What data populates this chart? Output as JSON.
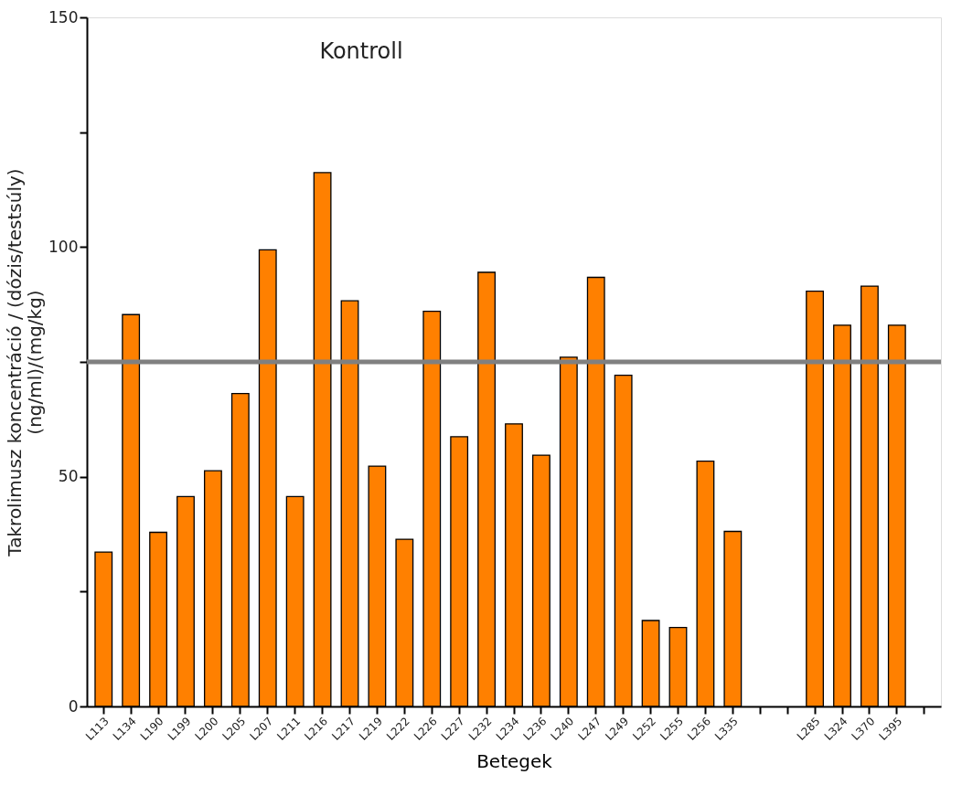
{
  "chart_data": {
    "type": "bar",
    "xlabel": "Betegek",
    "ylabel": "Takrolimusz koncentráció / (dózis/testsúly)\n(ng/ml)/(mg/kg)",
    "categories": [
      "L113",
      "L134",
      "L190",
      "L199",
      "L200",
      "L205",
      "L207",
      "L211",
      "L216",
      "L217",
      "L219",
      "L222",
      "L226",
      "L227",
      "L232",
      "L234",
      "L236",
      "L240",
      "L247",
      "L249",
      "L252",
      "L255",
      "L256",
      "L335",
      null,
      null,
      "L285",
      "L324",
      "L370",
      "L395",
      null
    ],
    "values": [
      33.6,
      85.3,
      37.9,
      45.7,
      51.3,
      68.1,
      99.4,
      45.7,
      116.2,
      88.3,
      52.3,
      36.4,
      86.0,
      58.7,
      94.5,
      61.5,
      54.7,
      76.0,
      93.4,
      72.1,
      18.7,
      17.2,
      53.4,
      38.1,
      null,
      null,
      90.4,
      83.0,
      91.5,
      83.0,
      null
    ],
    "color": "#ff8000",
    "ylim": [
      0,
      150
    ],
    "yticks": [
      0,
      {
        "value": 25,
        "label": null
      },
      50,
      {
        "value": 75,
        "label": null
      },
      100,
      {
        "value": 125,
        "label": null
      },
      150
    ],
    "ref_lines": [
      {
        "axis": "y",
        "value": 75,
        "color": "#808080"
      }
    ],
    "annotations": [
      "Kontroll"
    ],
    "grid": false
  }
}
